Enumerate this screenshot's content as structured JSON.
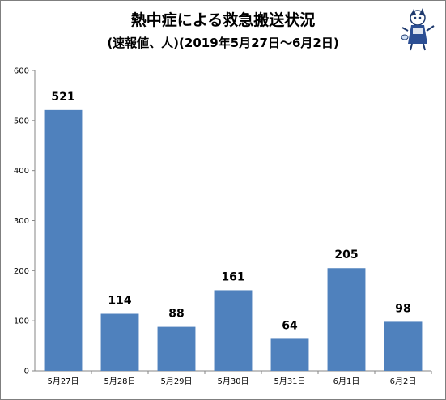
{
  "chart_data": {
    "type": "bar",
    "title": "熱中症による救急搬送状況",
    "subtitle": "(速報値、人)(2019年5月27日～6月2日)",
    "categories": [
      "5月27日",
      "5月28日",
      "5月29日",
      "5月30日",
      "5月31日",
      "6月1日",
      "6月2日"
    ],
    "values": [
      521,
      114,
      88,
      161,
      64,
      205,
      98
    ],
    "data_labels": [
      "521",
      "114",
      "88",
      "161",
      "64",
      "205",
      "98"
    ],
    "y_ticks": [
      "0",
      "100",
      "200",
      "300",
      "400",
      "500",
      "600"
    ],
    "ylim": [
      0,
      600
    ],
    "grid": false,
    "legend": "none",
    "bar_color": "#4f81bd",
    "xlabel": "",
    "ylabel": ""
  },
  "mascot": {
    "icon": "mascot-illustration-icon"
  }
}
